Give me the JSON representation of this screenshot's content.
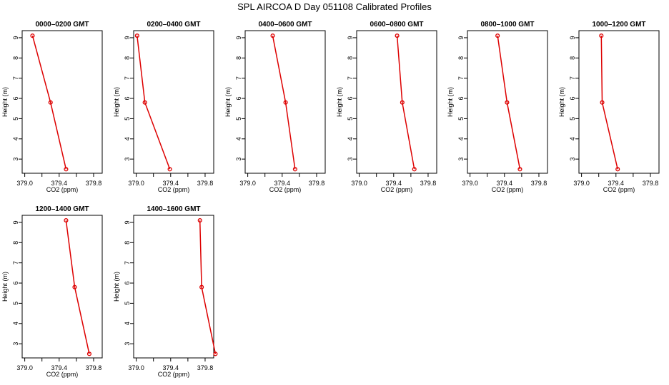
{
  "figure": {
    "title": "SPL AIRCOA D  Day 051108  Calibrated Profiles"
  },
  "chart_data": [
    {
      "type": "line",
      "title": "0000–0200 GMT",
      "xlabel": "CO2 (ppm)",
      "ylabel": "Height (m)",
      "xlim": [
        378.97,
        379.9
      ],
      "ylim": [
        2.3,
        9.35
      ],
      "xticks": [
        379.0,
        379.2,
        379.4,
        379.6,
        379.8
      ],
      "xtick_labels": [
        "379.0",
        "",
        "379.4",
        "",
        "379.8"
      ],
      "yticks": [
        3,
        4,
        5,
        6,
        7,
        8,
        9
      ],
      "ytick_labels": [
        "3",
        "4",
        "5",
        "6",
        "7",
        "8",
        "9"
      ],
      "x": [
        379.09,
        379.3,
        379.48
      ],
      "y": [
        9.1,
        5.8,
        2.5
      ]
    },
    {
      "type": "line",
      "title": "0200–0400 GMT",
      "xlabel": "CO2 (ppm)",
      "ylabel": "Height (m)",
      "xlim": [
        378.97,
        379.9
      ],
      "ylim": [
        2.3,
        9.35
      ],
      "xticks": [
        379.0,
        379.2,
        379.4,
        379.6,
        379.8
      ],
      "xtick_labels": [
        "379.0",
        "",
        "379.4",
        "",
        "379.8"
      ],
      "yticks": [
        3,
        4,
        5,
        6,
        7,
        8,
        9
      ],
      "ytick_labels": [
        "3",
        "4",
        "5",
        "6",
        "7",
        "8",
        "9"
      ],
      "x": [
        379.01,
        379.1,
        379.39
      ],
      "y": [
        9.1,
        5.8,
        2.5
      ]
    },
    {
      "type": "line",
      "title": "0400–0600 GMT",
      "xlabel": "CO2 (ppm)",
      "ylabel": "Height (m)",
      "xlim": [
        378.97,
        379.9
      ],
      "ylim": [
        2.3,
        9.35
      ],
      "xticks": [
        379.0,
        379.2,
        379.4,
        379.6,
        379.8
      ],
      "xtick_labels": [
        "379.0",
        "",
        "379.4",
        "",
        "379.8"
      ],
      "yticks": [
        3,
        4,
        5,
        6,
        7,
        8,
        9
      ],
      "ytick_labels": [
        "3",
        "4",
        "5",
        "6",
        "7",
        "8",
        "9"
      ],
      "x": [
        379.29,
        379.44,
        379.55
      ],
      "y": [
        9.1,
        5.8,
        2.5
      ]
    },
    {
      "type": "line",
      "title": "0600–0800 GMT",
      "xlabel": "CO2 (ppm)",
      "ylabel": "Height (m)",
      "xlim": [
        378.97,
        379.9
      ],
      "ylim": [
        2.3,
        9.35
      ],
      "xticks": [
        379.0,
        379.2,
        379.4,
        379.6,
        379.8
      ],
      "xtick_labels": [
        "379.0",
        "",
        "379.4",
        "",
        "379.8"
      ],
      "yticks": [
        3,
        4,
        5,
        6,
        7,
        8,
        9
      ],
      "ytick_labels": [
        "3",
        "4",
        "5",
        "6",
        "7",
        "8",
        "9"
      ],
      "x": [
        379.44,
        379.5,
        379.64
      ],
      "y": [
        9.1,
        5.8,
        2.5
      ]
    },
    {
      "type": "line",
      "title": "0800–1000 GMT",
      "xlabel": "CO2 (ppm)",
      "ylabel": "Height (m)",
      "xlim": [
        378.97,
        379.9
      ],
      "ylim": [
        2.3,
        9.35
      ],
      "xticks": [
        379.0,
        379.2,
        379.4,
        379.6,
        379.8
      ],
      "xtick_labels": [
        "379.0",
        "",
        "379.4",
        "",
        "379.8"
      ],
      "yticks": [
        3,
        4,
        5,
        6,
        7,
        8,
        9
      ],
      "ytick_labels": [
        "3",
        "4",
        "5",
        "6",
        "7",
        "8",
        "9"
      ],
      "x": [
        379.32,
        379.43,
        379.58
      ],
      "y": [
        9.1,
        5.8,
        2.5
      ]
    },
    {
      "type": "line",
      "title": "1000–1200 GMT",
      "xlabel": "CO2 (ppm)",
      "ylabel": "Height (m)",
      "xlim": [
        378.97,
        379.9
      ],
      "ylim": [
        2.3,
        9.35
      ],
      "xticks": [
        379.0,
        379.2,
        379.4,
        379.6,
        379.8
      ],
      "xtick_labels": [
        "379.0",
        "",
        "379.4",
        "",
        "379.8"
      ],
      "yticks": [
        3,
        4,
        5,
        6,
        7,
        8,
        9
      ],
      "ytick_labels": [
        "3",
        "4",
        "5",
        "6",
        "7",
        "8",
        "9"
      ],
      "x": [
        379.23,
        379.24,
        379.42
      ],
      "y": [
        9.1,
        5.8,
        2.5
      ]
    },
    {
      "type": "line",
      "title": "1200–1400 GMT",
      "xlabel": "CO2 (ppm)",
      "ylabel": "Height (m)",
      "xlim": [
        378.97,
        379.9
      ],
      "ylim": [
        2.3,
        9.35
      ],
      "xticks": [
        379.0,
        379.2,
        379.4,
        379.6,
        379.8
      ],
      "xtick_labels": [
        "379.0",
        "",
        "379.4",
        "",
        "379.8"
      ],
      "yticks": [
        3,
        4,
        5,
        6,
        7,
        8,
        9
      ],
      "ytick_labels": [
        "3",
        "4",
        "5",
        "6",
        "7",
        "8",
        "9"
      ],
      "x": [
        379.48,
        379.58,
        379.75
      ],
      "y": [
        9.1,
        5.8,
        2.5
      ]
    },
    {
      "type": "line",
      "title": "1400–1600 GMT",
      "xlabel": "CO2 (ppm)",
      "ylabel": "Height (m)",
      "xlim": [
        378.97,
        379.9
      ],
      "ylim": [
        2.3,
        9.35
      ],
      "xticks": [
        379.0,
        379.2,
        379.4,
        379.6,
        379.8
      ],
      "xtick_labels": [
        "379.0",
        "",
        "379.4",
        "",
        "379.8"
      ],
      "yticks": [
        3,
        4,
        5,
        6,
        7,
        8,
        9
      ],
      "ytick_labels": [
        "3",
        "4",
        "5",
        "6",
        "7",
        "8",
        "9"
      ],
      "x": [
        379.74,
        379.76,
        379.92
      ],
      "y": [
        9.1,
        5.8,
        2.5
      ]
    }
  ],
  "colors": {
    "series": "#dd0000",
    "axes": "#000000",
    "background": "#ffffff"
  }
}
